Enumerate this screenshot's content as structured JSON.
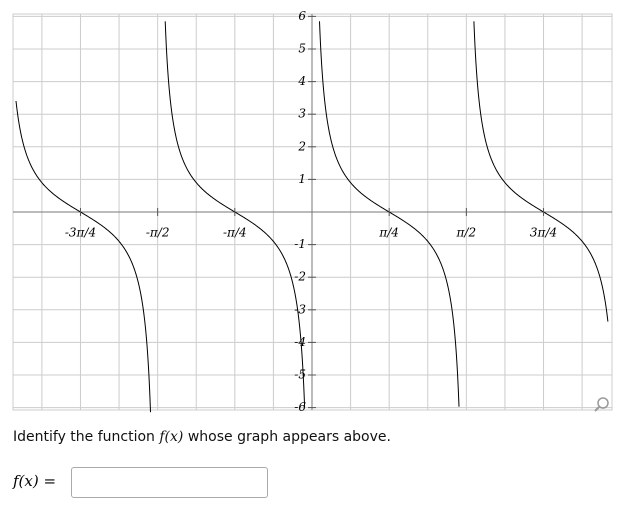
{
  "graph": {
    "x_tick_labels": [
      "-3π/4",
      "-π/2",
      "-π/4",
      "π/4",
      "π/2",
      "3π/4"
    ],
    "y_tick_labels": [
      "6",
      "5",
      "4",
      "3",
      "2",
      "1",
      "-1",
      "-2",
      "-3",
      "-4",
      "-5",
      "-6"
    ]
  },
  "question": {
    "prefix": "Identify the function",
    "function": "f(x)",
    "suffix": "whose graph appears above."
  },
  "answer": {
    "label": "f(x) ="
  }
}
